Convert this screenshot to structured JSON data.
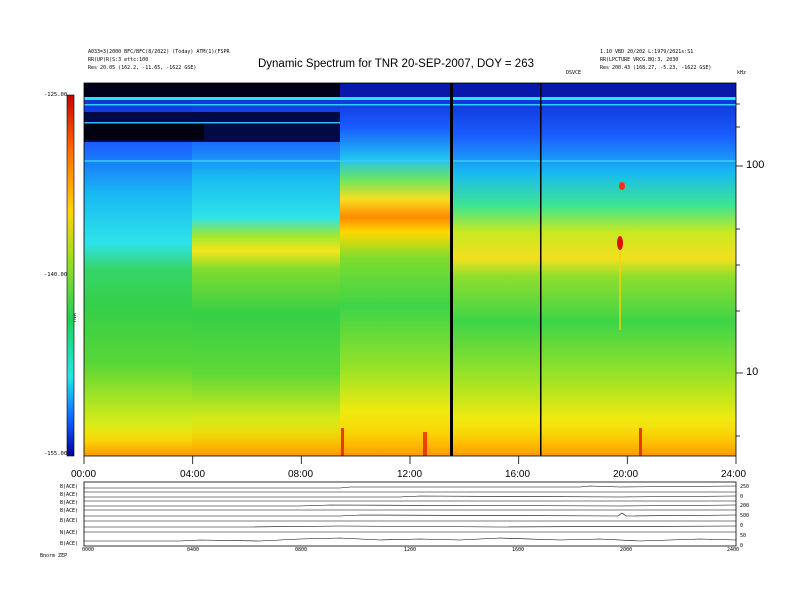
{
  "header": {
    "title": "Dynamic Spectrum for TNR 20-SEP-2007, DOY = 263",
    "left_lines": [
      "A033=3(2000 BFC/BFC(8/2022) (Today) ATM(1)(FSPR",
      "RR(UP)R(S:3 ettc:100",
      "Res     20.05 (162.2,  -11.65, -1622 GSE)"
    ],
    "right_lines": [
      "1.10 VBD 20/202                              L:1979/2021s:S1",
      "RR(LPCTURE VRCG.BQ:3, 2030",
      "Res     200.43 (168.27,  -5.23, -1622 GSE)"
    ],
    "mid_label": "DSVCE",
    "khz_label": "kHz"
  },
  "colorbar": {
    "max_label": "-125.00",
    "mid_label": "-140.00",
    "min_label": "-155.00",
    "axis_label": "TNR"
  },
  "chart_data": {
    "type": "heatmap",
    "title": "Dynamic Spectrum for TNR 20-SEP-2007, DOY = 263",
    "x": {
      "label": "",
      "range_hours": [
        0,
        24
      ],
      "ticks": [
        "00:00",
        "04:00",
        "08:00",
        "12:00",
        "16:00",
        "20:00",
        "24:00"
      ]
    },
    "y": {
      "scale": "log",
      "unit": "kHz",
      "ticks": [
        "10",
        "100"
      ]
    },
    "color": {
      "range": [
        -155.0,
        -125.0
      ],
      "ticks": [
        "-125.00",
        "-140.00",
        "-155.00"
      ],
      "label": "TNR"
    },
    "data_gaps_hours": [
      13.55,
      16.95
    ],
    "event_spot": {
      "time_hours": 20.0,
      "note": "red spot"
    },
    "bottom_panels": {
      "labels": [
        "B(ACE)",
        "B(ACE)",
        "B(ACE)",
        "B(ACE)",
        "B(ACE)",
        "N(ACE)",
        "B(ACE)"
      ],
      "right_values": [
        "250",
        "0",
        "200",
        "500",
        "0",
        "50",
        "0"
      ],
      "time_ticks": [
        "0000",
        "0400",
        "0800",
        "1200",
        "1600",
        "2000",
        "2400"
      ],
      "footer": "Bnorm   ZEP"
    }
  }
}
